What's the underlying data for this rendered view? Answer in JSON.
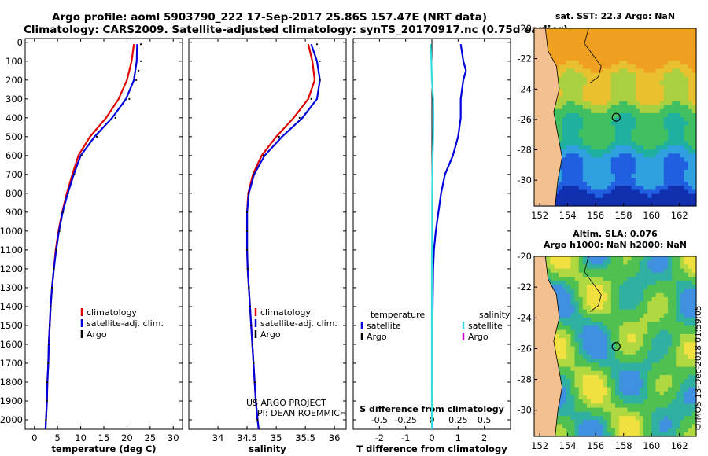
{
  "header": {
    "line1": "Argo profile: aoml 5903790_222 17-Sep-2017 25.86S 157.47E (NRT data)",
    "line2": "Climatology: CARS2009. Satellite-adjusted climatology: synTS_20170917.nc (0.75d earlier)"
  },
  "credits": {
    "project": "US ARGO PROJECT",
    "pi": "PI: DEAN ROEMMICH",
    "stamp": "©IMOS 13-Dec-2018 01:59:05"
  },
  "colors": {
    "climatology": "#e00000",
    "satellite": "#0000dd",
    "argo": "#000000",
    "s_satellite": "#33dddd",
    "s_argo": "#cc00cc"
  },
  "chart_data": [
    {
      "type": "line",
      "xlabel": "temperature (deg C)",
      "ylabel": "",
      "xlim": [
        -2,
        32
      ],
      "ylim": [
        2050,
        -20
      ],
      "xticks": [
        0,
        5,
        10,
        15,
        20,
        25,
        30
      ],
      "yticks": [
        0,
        100,
        200,
        300,
        400,
        500,
        600,
        700,
        800,
        900,
        1000,
        1100,
        1200,
        1300,
        1400,
        1500,
        1600,
        1700,
        1800,
        1900,
        2000
      ],
      "legend": {
        "placement": "bottom-right",
        "entries": [
          "climatology",
          "satellite-adj. clim.",
          "Argo"
        ]
      },
      "series": [
        {
          "name": "climatology",
          "color": "#e00000",
          "style": "line",
          "points": [
            [
              21.5,
              10
            ],
            [
              21.0,
              100
            ],
            [
              20.0,
              200
            ],
            [
              18.2,
              300
            ],
            [
              15.5,
              400
            ],
            [
              12.0,
              500
            ],
            [
              9.5,
              600
            ],
            [
              8.2,
              700
            ],
            [
              7.0,
              800
            ],
            [
              6.0,
              900
            ],
            [
              5.2,
              1000
            ],
            [
              4.6,
              1100
            ],
            [
              4.2,
              1200
            ],
            [
              3.8,
              1300
            ],
            [
              3.5,
              1400
            ],
            [
              3.3,
              1500
            ],
            [
              3.1,
              1600
            ],
            [
              3.0,
              1700
            ],
            [
              2.8,
              1800
            ],
            [
              2.7,
              1900
            ],
            [
              2.5,
              2000
            ],
            [
              2.4,
              2050
            ]
          ]
        },
        {
          "name": "satellite-adj. clim.",
          "color": "#0000dd",
          "style": "line",
          "points": [
            [
              22.2,
              10
            ],
            [
              22.1,
              100
            ],
            [
              21.5,
              200
            ],
            [
              19.8,
              300
            ],
            [
              16.8,
              400
            ],
            [
              13.0,
              500
            ],
            [
              10.0,
              600
            ],
            [
              8.5,
              700
            ],
            [
              7.2,
              800
            ],
            [
              6.1,
              900
            ],
            [
              5.3,
              1000
            ],
            [
              4.7,
              1100
            ],
            [
              4.2,
              1200
            ],
            [
              3.8,
              1300
            ],
            [
              3.5,
              1400
            ],
            [
              3.3,
              1500
            ],
            [
              3.1,
              1600
            ],
            [
              3.0,
              1700
            ],
            [
              2.8,
              1800
            ],
            [
              2.7,
              1900
            ],
            [
              2.5,
              2000
            ],
            [
              2.4,
              2050
            ]
          ]
        },
        {
          "name": "Argo",
          "color": "#000000",
          "style": "dots",
          "points": [
            [
              23.0,
              10
            ],
            [
              23.0,
              100
            ],
            [
              22.5,
              150
            ],
            [
              22.0,
              200
            ],
            [
              20.5,
              300
            ],
            [
              17.5,
              400
            ],
            [
              13.5,
              500
            ],
            [
              10.2,
              600
            ],
            [
              8.6,
              700
            ],
            [
              7.3,
              800
            ],
            [
              6.2,
              900
            ],
            [
              5.4,
              1000
            ],
            [
              4.7,
              1100
            ],
            [
              4.2,
              1200
            ],
            [
              3.8,
              1300
            ],
            [
              3.5,
              1400
            ],
            [
              3.3,
              1500
            ],
            [
              3.1,
              1600
            ],
            [
              3.0,
              1700
            ],
            [
              2.8,
              1800
            ],
            [
              2.7,
              1900
            ],
            [
              2.5,
              2000
            ]
          ]
        }
      ]
    },
    {
      "type": "line",
      "xlabel": "salinity",
      "ylabel": "",
      "xlim": [
        33.5,
        36.2
      ],
      "ylim": [
        2050,
        -20
      ],
      "xticks": [
        34,
        34.5,
        35,
        35.5,
        36
      ],
      "xticklabels": [
        "34",
        "34.5",
        "35",
        "35.5",
        "36"
      ],
      "legend": {
        "placement": "bottom-right",
        "entries": [
          "climatology",
          "satellite-adj. clim.",
          "Argo"
        ]
      },
      "series": [
        {
          "name": "climatology",
          "color": "#e00000",
          "style": "line",
          "points": [
            [
              35.55,
              10
            ],
            [
              35.62,
              100
            ],
            [
              35.66,
              200
            ],
            [
              35.55,
              300
            ],
            [
              35.3,
              400
            ],
            [
              35.0,
              500
            ],
            [
              34.75,
              600
            ],
            [
              34.6,
              700
            ],
            [
              34.52,
              800
            ],
            [
              34.5,
              900
            ],
            [
              34.5,
              1000
            ],
            [
              34.5,
              1100
            ],
            [
              34.51,
              1200
            ],
            [
              34.53,
              1300
            ],
            [
              34.55,
              1400
            ],
            [
              34.57,
              1500
            ],
            [
              34.59,
              1600
            ],
            [
              34.61,
              1700
            ],
            [
              34.63,
              1800
            ],
            [
              34.65,
              1900
            ],
            [
              34.68,
              2000
            ],
            [
              34.7,
              2050
            ]
          ]
        },
        {
          "name": "satellite-adj. clim.",
          "color": "#0000dd",
          "style": "line",
          "points": [
            [
              35.6,
              10
            ],
            [
              35.7,
              100
            ],
            [
              35.75,
              200
            ],
            [
              35.7,
              300
            ],
            [
              35.45,
              400
            ],
            [
              35.1,
              500
            ],
            [
              34.8,
              600
            ],
            [
              34.62,
              700
            ],
            [
              34.53,
              800
            ],
            [
              34.5,
              900
            ],
            [
              34.5,
              1000
            ],
            [
              34.5,
              1100
            ],
            [
              34.51,
              1200
            ],
            [
              34.53,
              1300
            ],
            [
              34.55,
              1400
            ],
            [
              34.57,
              1500
            ],
            [
              34.59,
              1600
            ],
            [
              34.61,
              1700
            ],
            [
              34.63,
              1800
            ],
            [
              34.65,
              1900
            ],
            [
              34.68,
              2000
            ],
            [
              34.7,
              2050
            ]
          ]
        },
        {
          "name": "Argo",
          "color": "#000000",
          "style": "dots",
          "points": [
            [
              35.7,
              10
            ],
            [
              35.75,
              100
            ],
            [
              35.75,
              200
            ],
            [
              35.6,
              300
            ],
            [
              35.4,
              400
            ],
            [
              35.05,
              500
            ],
            [
              34.78,
              600
            ],
            [
              34.61,
              700
            ],
            [
              34.52,
              800
            ],
            [
              34.5,
              900
            ],
            [
              34.5,
              1000
            ],
            [
              34.5,
              1100
            ],
            [
              34.51,
              1200
            ],
            [
              34.53,
              1300
            ],
            [
              34.55,
              1400
            ],
            [
              34.57,
              1500
            ],
            [
              34.59,
              1600
            ],
            [
              34.61,
              1700
            ],
            [
              34.63,
              1800
            ],
            [
              34.65,
              1900
            ],
            [
              34.68,
              2000
            ]
          ]
        }
      ]
    },
    {
      "type": "line",
      "xlabel": "T difference from climatology",
      "ylabel": "",
      "xlim": [
        -3,
        3
      ],
      "ylim": [
        2050,
        -20
      ],
      "xticks": [
        -2,
        -1,
        0,
        1,
        2
      ],
      "secondary_axis": {
        "label": "S difference from climatology",
        "ticks": [
          -0.5,
          -0.25,
          0,
          0.25,
          0.5
        ],
        "ticklabels": [
          "-0.5",
          "-0.25",
          "0",
          "0.25",
          "0.5"
        ]
      },
      "legend": {
        "placement": "bottom",
        "entries": [
          "temperature",
          "satellite",
          "Argo",
          "salinity",
          "satellite",
          "Argo"
        ]
      },
      "series": [
        {
          "name": "satellite",
          "group": "temperature",
          "color": "#0000dd",
          "style": "line",
          "points": [
            [
              1.1,
              10
            ],
            [
              1.2,
              100
            ],
            [
              1.3,
              150
            ],
            [
              1.2,
              200
            ],
            [
              1.1,
              300
            ],
            [
              1.1,
              400
            ],
            [
              1.0,
              500
            ],
            [
              0.8,
              600
            ],
            [
              0.5,
              700
            ],
            [
              0.35,
              800
            ],
            [
              0.25,
              900
            ],
            [
              0.15,
              1000
            ],
            [
              0.08,
              1100
            ],
            [
              0.05,
              1200
            ],
            [
              0.03,
              1400
            ],
            [
              0.02,
              1600
            ],
            [
              0.02,
              1800
            ],
            [
              0.01,
              2050
            ]
          ]
        },
        {
          "name": "satellite",
          "group": "salinity",
          "color": "#33dddd",
          "style": "line",
          "points": [
            [
              -0.05,
              10
            ],
            [
              -0.02,
              100
            ],
            [
              0.0,
              200
            ],
            [
              0.05,
              300
            ],
            [
              0.06,
              400
            ],
            [
              0.05,
              500
            ],
            [
              0.03,
              600
            ],
            [
              0.02,
              700
            ],
            [
              0.01,
              800
            ],
            [
              0.01,
              1000
            ],
            [
              0.0,
              1200
            ],
            [
              0.0,
              1600
            ],
            [
              0.0,
              2050
            ]
          ]
        }
      ]
    }
  ],
  "maps": [
    {
      "title": "sat. SST: 22.3 Argo: NaN",
      "title2": "",
      "lon_ticks": [
        152,
        154,
        156,
        158,
        160,
        162
      ],
      "lat_ticks": [
        -20,
        -22,
        -24,
        -26,
        -28,
        -30
      ],
      "lon_range": [
        151.6,
        163.2
      ],
      "lat_range": [
        -31.7,
        -20
      ],
      "marker": [
        157.47,
        -25.86
      ]
    },
    {
      "title": "Altim. SLA: 0.076",
      "title2": "Argo h1000: NaN h2000: NaN",
      "lon_ticks": [
        152,
        154,
        156,
        158,
        160,
        162
      ],
      "lat_ticks": [
        -20,
        -22,
        -24,
        -26,
        -28,
        -30
      ],
      "lon_range": [
        151.6,
        163.2
      ],
      "lat_range": [
        -31.7,
        -20
      ],
      "marker": [
        157.47,
        -25.86
      ]
    }
  ]
}
